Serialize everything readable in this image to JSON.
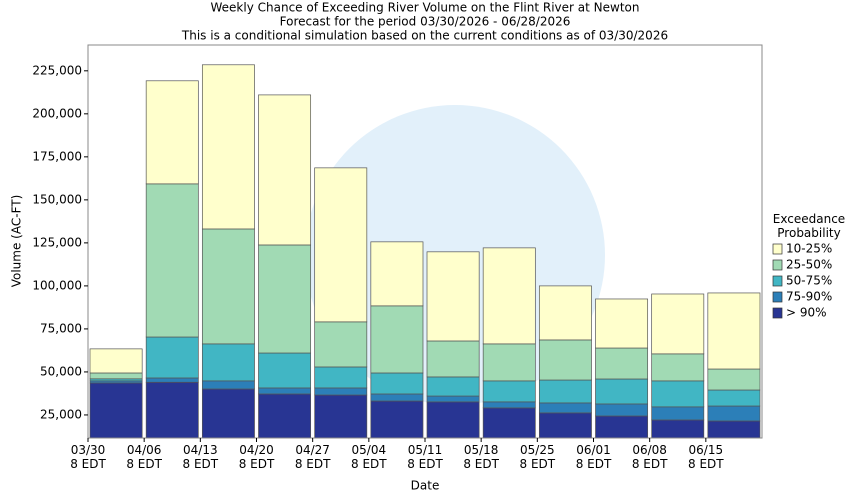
{
  "chart_data": {
    "type": "stacked_bar",
    "title": "Weekly Chance of Exceeding River Volume on the Flint River at Newton",
    "subtitle": "Forecast for the period 03/30/2026 - 06/28/2026",
    "note": "This is a conditional simulation based on the current conditions as of 03/30/2026",
    "x_label": "Date",
    "y_label": "Volume (AC-FT)",
    "legend_title": "Exceedance Probability",
    "legend_position": "right",
    "grid": false,
    "categories": [
      "03/30\n8 EDT",
      "04/06\n8 EDT",
      "04/13\n8 EDT",
      "04/20\n8 EDT",
      "04/27\n8 EDT",
      "05/04\n8 EDT",
      "05/11\n8 EDT",
      "05/18\n8 EDT",
      "05/25\n8 EDT",
      "06/01\n8 EDT",
      "06/08\n8 EDT",
      "06/15\n8 EDT"
    ],
    "ylim": [
      11600,
      240000
    ],
    "yticks": [
      {
        "value": 25000,
        "label": "25,000"
      },
      {
        "value": 50000,
        "label": "50,000"
      },
      {
        "value": 75000,
        "label": "75,000"
      },
      {
        "value": 100000,
        "label": "100,000"
      },
      {
        "value": 125000,
        "label": "125,000"
      },
      {
        "value": 150000,
        "label": "150,000"
      },
      {
        "value": 175000,
        "label": "175,000"
      },
      {
        "value": 200000,
        "label": "200,000"
      },
      {
        "value": 225000,
        "label": "225,000"
      }
    ],
    "series": [
      {
        "name": "> 90%",
        "color": "#283593",
        "values": [
          43600,
          44000,
          40100,
          37200,
          36600,
          33100,
          32600,
          29100,
          26200,
          24400,
          22100,
          21500
        ]
      },
      {
        "name": "75-90%",
        "color": "#2c7fb8",
        "values": [
          1200,
          2500,
          4700,
          3500,
          4100,
          4100,
          3400,
          3500,
          5800,
          7000,
          7600,
          8700
        ]
      },
      {
        "name": "50-75%",
        "color": "#41b6c4",
        "values": [
          1200,
          23800,
          21500,
          20300,
          12200,
          12200,
          11100,
          12200,
          13300,
          14500,
          15100,
          9300
        ]
      },
      {
        "name": "25-50%",
        "color": "#a1dab4",
        "values": [
          3400,
          89000,
          66800,
          62800,
          26200,
          39000,
          20900,
          21500,
          23300,
          18000,
          15700,
          12200
        ]
      },
      {
        "name": "10-25%",
        "color": "#ffffcc",
        "values": [
          14000,
          59900,
          95400,
          87200,
          89500,
          37200,
          51800,
          55800,
          31400,
          28500,
          34800,
          44200
        ]
      }
    ]
  }
}
